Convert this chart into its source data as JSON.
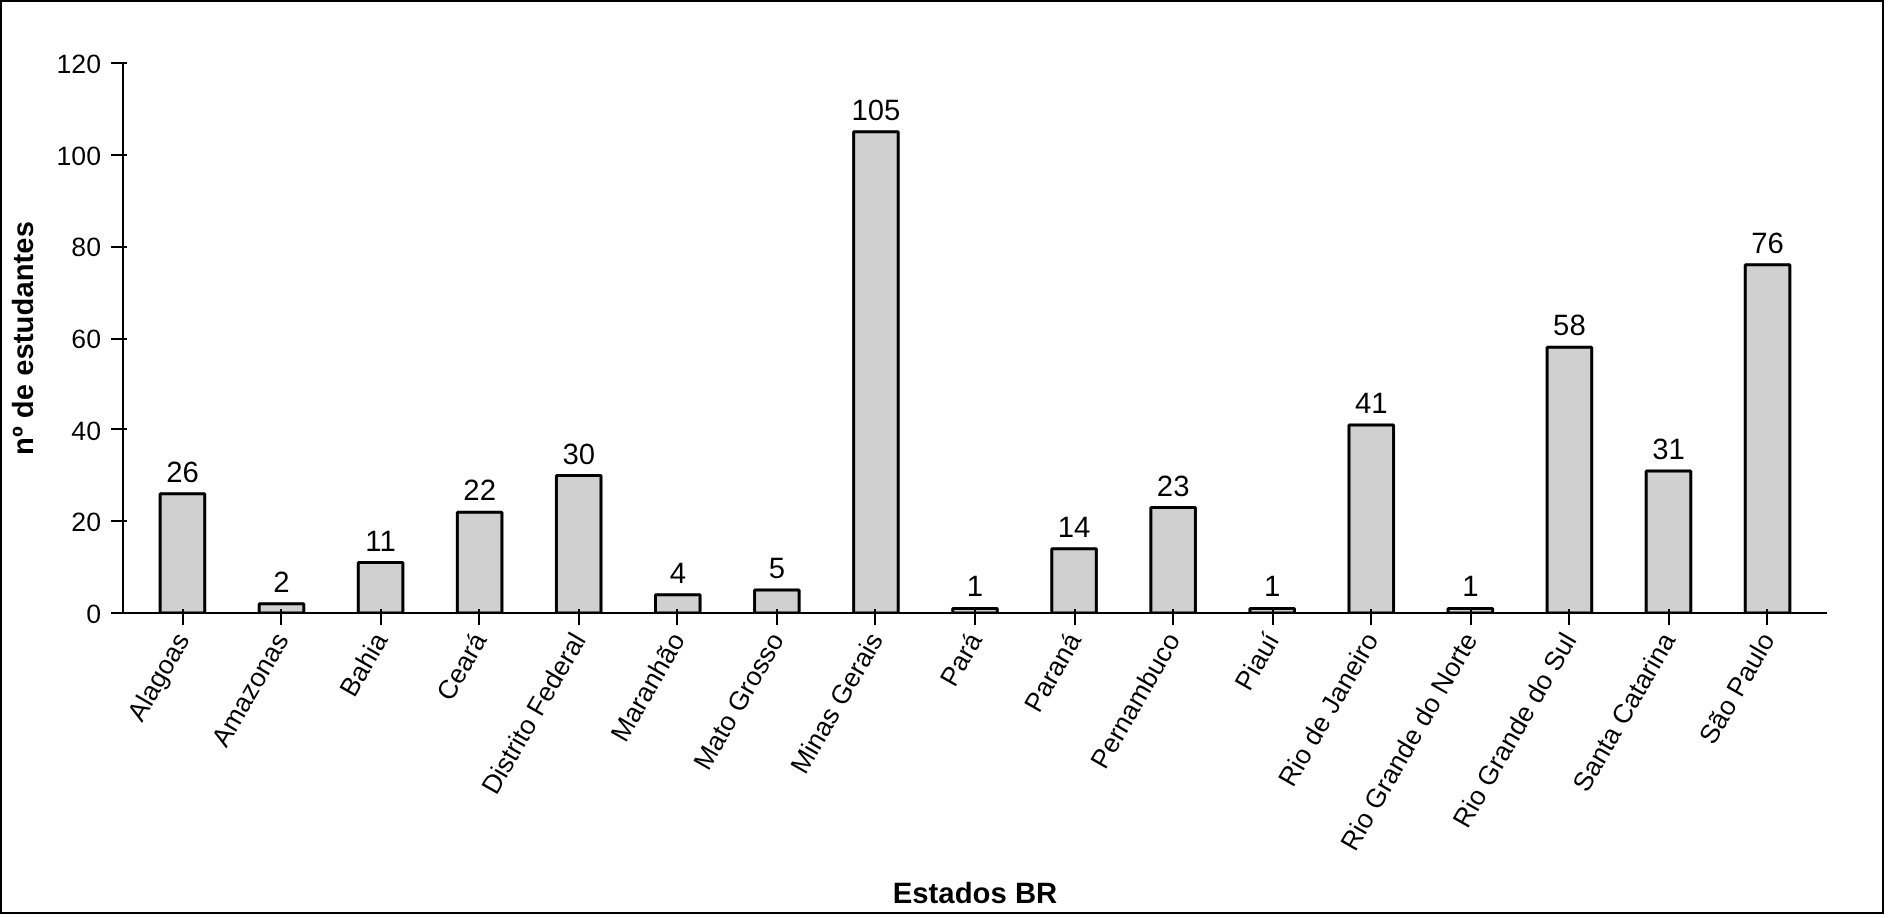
{
  "chart_data": {
    "type": "bar",
    "xlabel": "Estados BR",
    "ylabel": "nº de estudantes",
    "categories": [
      "Alagoas",
      "Amazonas",
      "Bahia",
      "Ceará",
      "Distrito Federal",
      "Maranhão",
      "Mato Grosso",
      "Minas Gerais",
      "Pará",
      "Paraná",
      "Pernambuco",
      "Piauí",
      "Rio de Janeiro",
      "Rio Grande do Norte",
      "Rio Grande do Sul",
      "Santa Catarina",
      "São Paulo"
    ],
    "values": [
      26,
      2,
      11,
      22,
      30,
      4,
      5,
      105,
      1,
      14,
      23,
      1,
      41,
      1,
      58,
      31,
      76
    ],
    "color": "#d0d0d0",
    "ylim": [
      0,
      120
    ],
    "yticks": [
      0,
      20,
      40,
      60,
      80,
      100,
      120
    ],
    "grid": false,
    "data_labels": true
  }
}
